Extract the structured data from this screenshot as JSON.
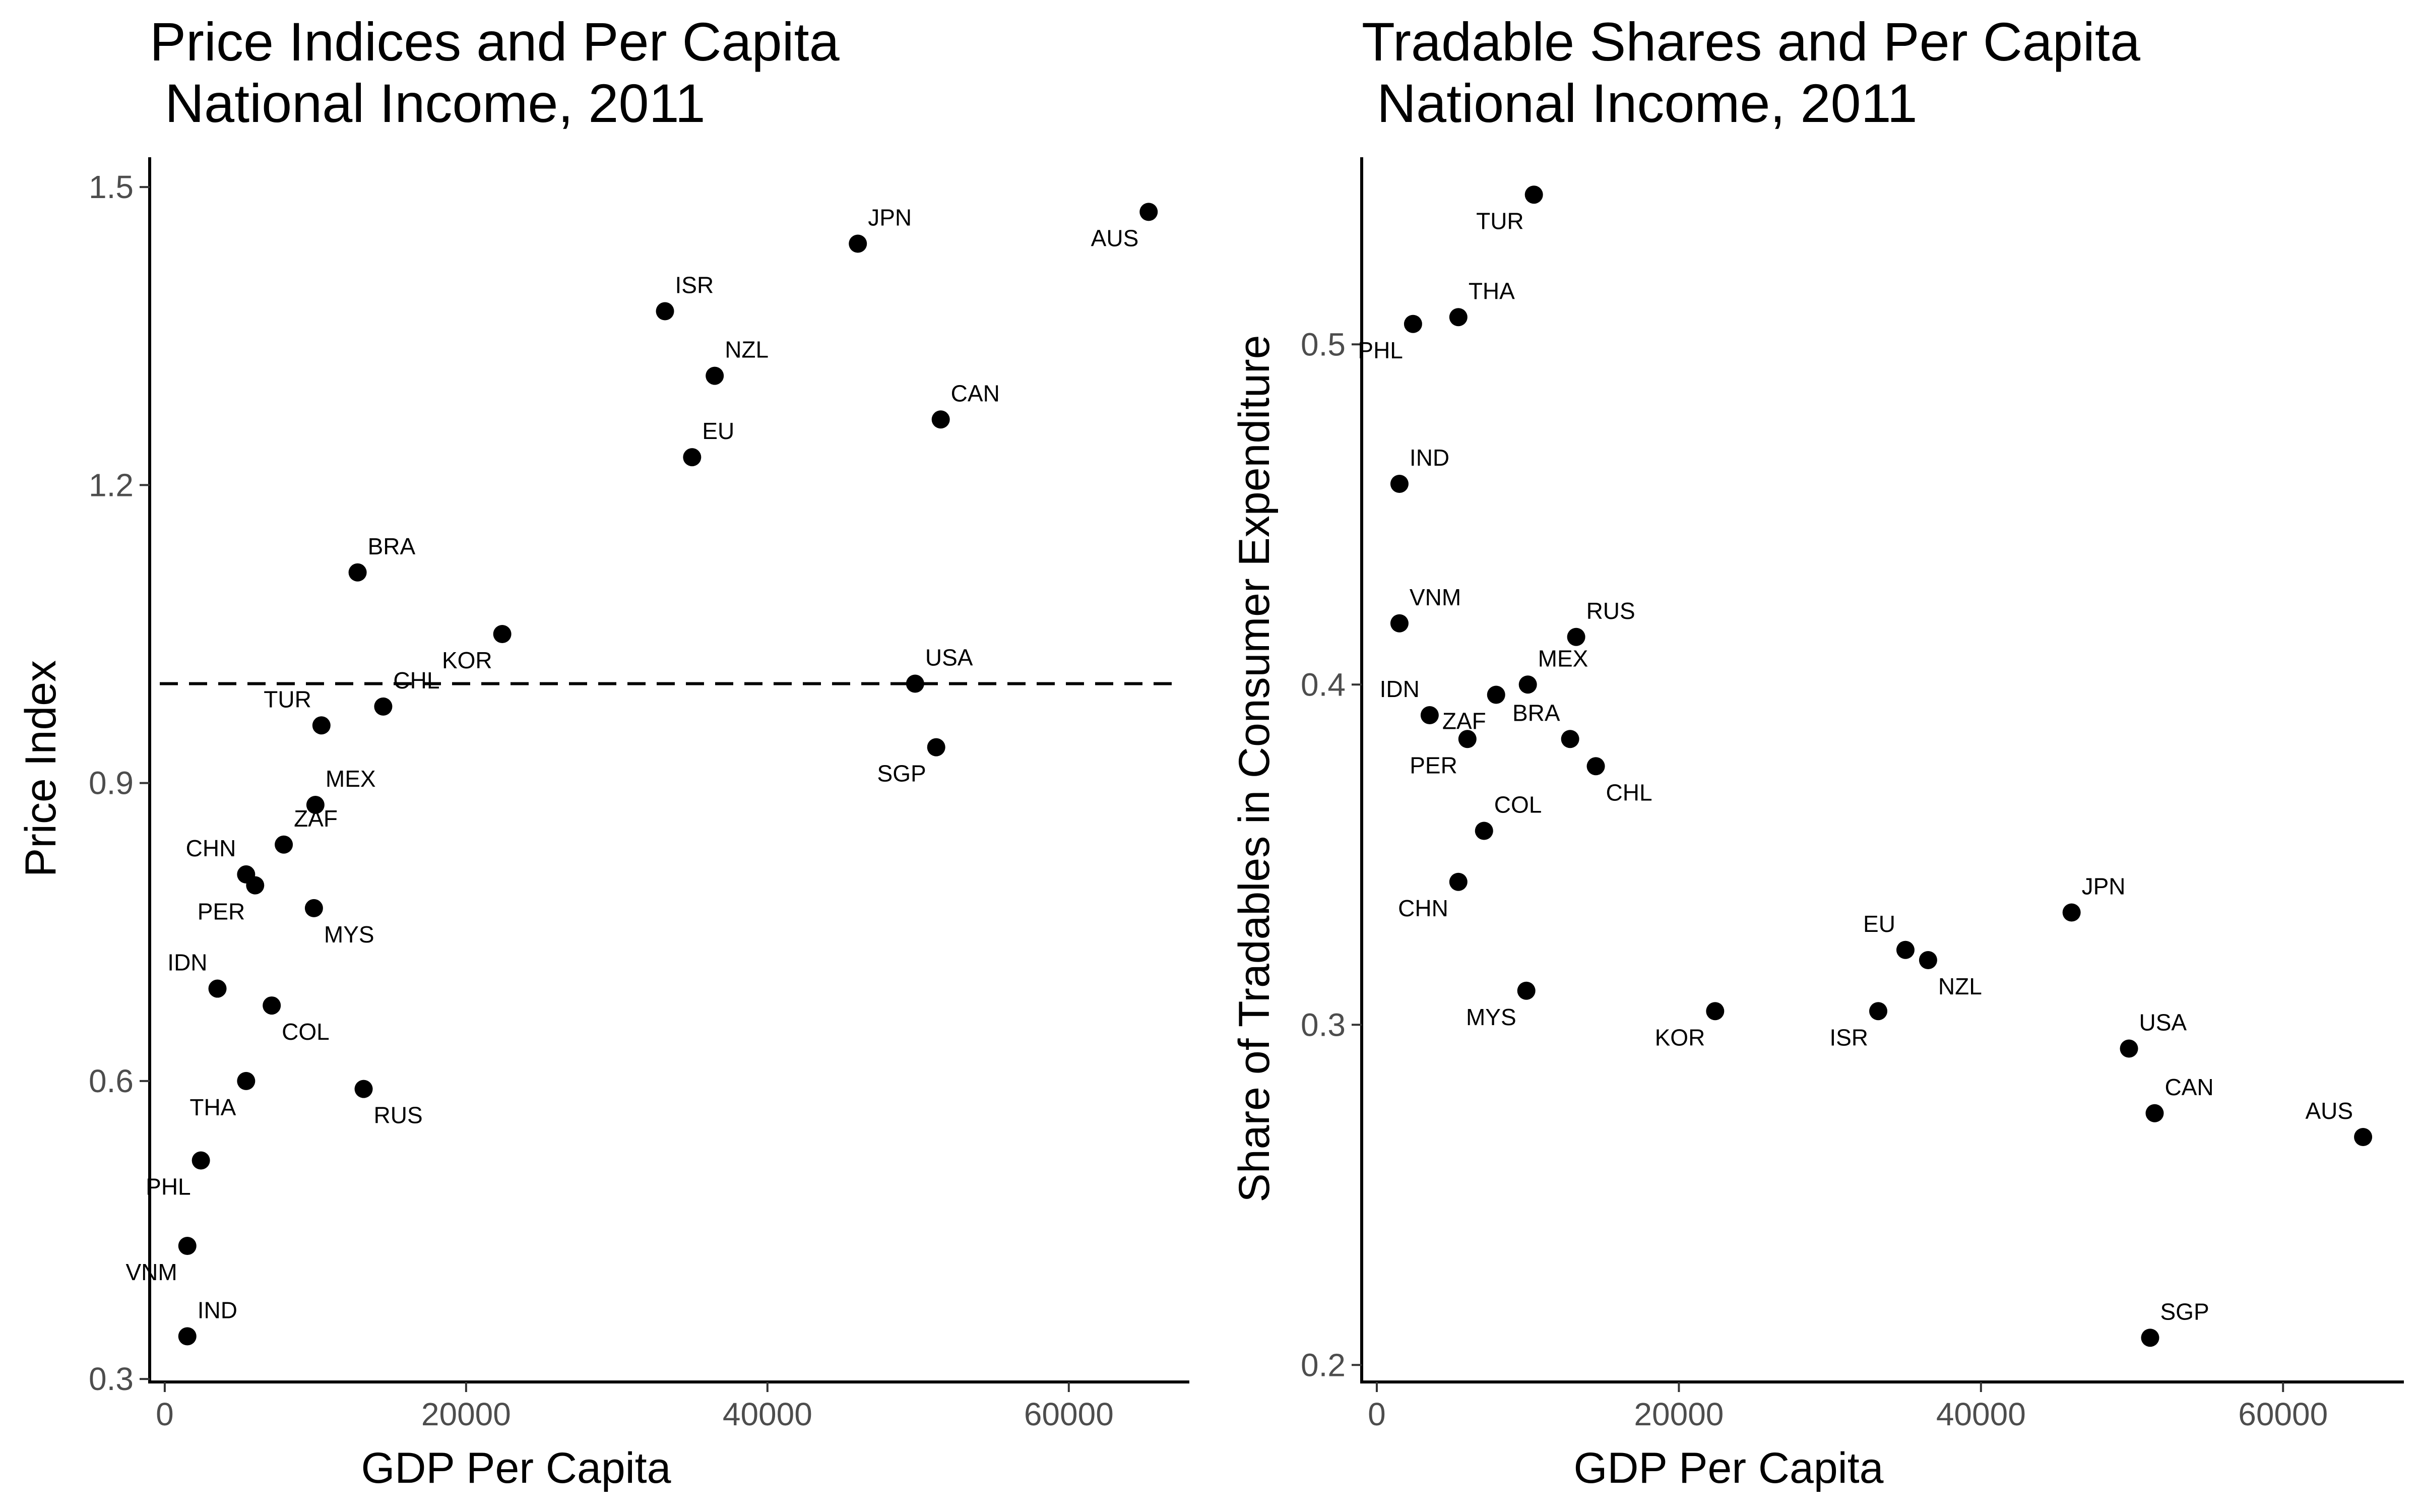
{
  "chart_data": [
    {
      "type": "scatter",
      "title_lines": [
        "Price Indices and Per Capita",
        " National Income, 2011"
      ],
      "xlabel": "GDP Per Capita",
      "ylabel": "Price Index",
      "xlim": [
        -1000,
        68000
      ],
      "ylim": [
        0.297,
        1.53
      ],
      "xticks": [
        0,
        20000,
        40000,
        60000
      ],
      "xtick_labels": [
        "0",
        "20000",
        "40000",
        "60000"
      ],
      "yticks": [
        0.3,
        0.6,
        0.9,
        1.2,
        1.5
      ],
      "ytick_labels": [
        "0.3",
        "0.6",
        "0.9",
        "1.2",
        "1.5"
      ],
      "reference_line": {
        "y": 1.0,
        "style": "dashed"
      },
      "grid": false,
      "points": [
        {
          "label": "AUS",
          "x": 65300,
          "y": 1.475,
          "label_pos": "below-left"
        },
        {
          "label": "JPN",
          "x": 46000,
          "y": 1.443,
          "label_pos": "above-right"
        },
        {
          "label": "ISR",
          "x": 33200,
          "y": 1.375,
          "label_pos": "above-right"
        },
        {
          "label": "NZL",
          "x": 36500,
          "y": 1.31,
          "label_pos": "above-right"
        },
        {
          "label": "CAN",
          "x": 51500,
          "y": 1.266,
          "label_pos": "above-right"
        },
        {
          "label": "EU",
          "x": 35000,
          "y": 1.228,
          "label_pos": "above-right"
        },
        {
          "label": "BRA",
          "x": 12800,
          "y": 1.112,
          "label_pos": "above-right"
        },
        {
          "label": "KOR",
          "x": 22400,
          "y": 1.05,
          "label_pos": "below-left"
        },
        {
          "label": "USA",
          "x": 49800,
          "y": 1.0,
          "label_pos": "above-right"
        },
        {
          "label": "CHL",
          "x": 14500,
          "y": 0.977,
          "label_pos": "above-right"
        },
        {
          "label": "TUR",
          "x": 10400,
          "y": 0.958,
          "label_pos": "above-left"
        },
        {
          "label": "SGP",
          "x": 51200,
          "y": 0.936,
          "label_pos": "below-left"
        },
        {
          "label": "MEX",
          "x": 10000,
          "y": 0.878,
          "label_pos": "above-right"
        },
        {
          "label": "ZAF",
          "x": 7900,
          "y": 0.838,
          "label_pos": "above-right"
        },
        {
          "label": "CHN",
          "x": 5400,
          "y": 0.808,
          "label_pos": "above-left"
        },
        {
          "label": "PER",
          "x": 6000,
          "y": 0.797,
          "label_pos": "below-left"
        },
        {
          "label": "MYS",
          "x": 9900,
          "y": 0.774,
          "label_pos": "below-right"
        },
        {
          "label": "IDN",
          "x": 3500,
          "y": 0.693,
          "label_pos": "above-left"
        },
        {
          "label": "COL",
          "x": 7100,
          "y": 0.676,
          "label_pos": "below-right"
        },
        {
          "label": "THA",
          "x": 5400,
          "y": 0.6,
          "label_pos": "below-left"
        },
        {
          "label": "RUS",
          "x": 13200,
          "y": 0.592,
          "label_pos": "below-right"
        },
        {
          "label": "PHL",
          "x": 2400,
          "y": 0.52,
          "label_pos": "below-left"
        },
        {
          "label": "VNM",
          "x": 1500,
          "y": 0.434,
          "label_pos": "below-left"
        },
        {
          "label": "IND",
          "x": 1500,
          "y": 0.343,
          "label_pos": "above-right"
        }
      ]
    },
    {
      "type": "scatter",
      "title_lines": [
        "Tradable Shares and Per Capita",
        " National Income, 2011"
      ],
      "xlabel": "GDP Per Capita",
      "ylabel": "Share of Tradables in Consumer Expenditure",
      "xlim": [
        -1000,
        68000
      ],
      "ylim": [
        0.195,
        0.555
      ],
      "xticks": [
        0,
        20000,
        40000,
        60000
      ],
      "xtick_labels": [
        "0",
        "20000",
        "40000",
        "60000"
      ],
      "yticks": [
        0.2,
        0.3,
        0.4,
        0.5
      ],
      "ytick_labels": [
        "0.2",
        "0.3",
        "0.4",
        "0.5"
      ],
      "grid": false,
      "points": [
        {
          "label": "TUR",
          "x": 10400,
          "y": 0.544,
          "label_pos": "below-left"
        },
        {
          "label": "THA",
          "x": 5400,
          "y": 0.508,
          "label_pos": "above-right"
        },
        {
          "label": "PHL",
          "x": 2400,
          "y": 0.506,
          "label_pos": "below-left"
        },
        {
          "label": "IND",
          "x": 1500,
          "y": 0.459,
          "label_pos": "above-right"
        },
        {
          "label": "VNM",
          "x": 1500,
          "y": 0.418,
          "label_pos": "above-right"
        },
        {
          "label": "RUS",
          "x": 13200,
          "y": 0.414,
          "label_pos": "above-right"
        },
        {
          "label": "MEX",
          "x": 10000,
          "y": 0.4,
          "label_pos": "above-right"
        },
        {
          "label": "ZAF",
          "x": 7900,
          "y": 0.397,
          "label_pos": "below-left"
        },
        {
          "label": "IDN",
          "x": 3500,
          "y": 0.391,
          "label_pos": "above-left"
        },
        {
          "label": "BRA",
          "x": 12800,
          "y": 0.384,
          "label_pos": "above-left"
        },
        {
          "label": "PER",
          "x": 6000,
          "y": 0.384,
          "label_pos": "below-left"
        },
        {
          "label": "CHL",
          "x": 14500,
          "y": 0.376,
          "label_pos": "below-right"
        },
        {
          "label": "COL",
          "x": 7100,
          "y": 0.357,
          "label_pos": "above-right"
        },
        {
          "label": "CHN",
          "x": 5400,
          "y": 0.342,
          "label_pos": "below-left"
        },
        {
          "label": "JPN",
          "x": 46000,
          "y": 0.333,
          "label_pos": "above-right"
        },
        {
          "label": "EU",
          "x": 35000,
          "y": 0.322,
          "label_pos": "above-left"
        },
        {
          "label": "NZL",
          "x": 36500,
          "y": 0.319,
          "label_pos": "below-right"
        },
        {
          "label": "MYS",
          "x": 9900,
          "y": 0.31,
          "label_pos": "below-left"
        },
        {
          "label": "KOR",
          "x": 22400,
          "y": 0.304,
          "label_pos": "below-left"
        },
        {
          "label": "ISR",
          "x": 33200,
          "y": 0.304,
          "label_pos": "below-left"
        },
        {
          "label": "USA",
          "x": 49800,
          "y": 0.293,
          "label_pos": "above-right"
        },
        {
          "label": "CAN",
          "x": 51500,
          "y": 0.274,
          "label_pos": "above-right"
        },
        {
          "label": "AUS",
          "x": 65300,
          "y": 0.267,
          "label_pos": "above-left"
        },
        {
          "label": "SGP",
          "x": 51200,
          "y": 0.208,
          "label_pos": "above-right"
        }
      ]
    }
  ]
}
